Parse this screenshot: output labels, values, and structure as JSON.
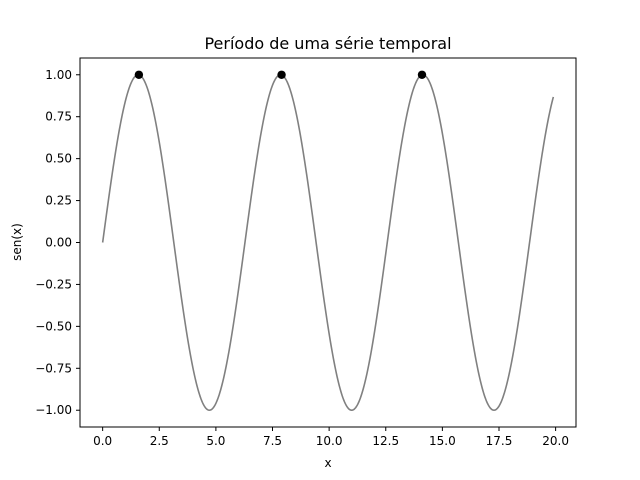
{
  "chart_data": {
    "type": "line",
    "title": "Período de uma série temporal",
    "xlabel": "x",
    "ylabel": "sen(x)",
    "xlim": [
      -1.0,
      20.9
    ],
    "ylim": [
      -1.1,
      1.1
    ],
    "x_ticks": [
      0.0,
      2.5,
      5.0,
      7.5,
      10.0,
      12.5,
      15.0,
      17.5,
      20.0
    ],
    "x_tick_labels": [
      "0.0",
      "2.5",
      "5.0",
      "7.5",
      "10.0",
      "12.5",
      "15.0",
      "17.5",
      "20.0"
    ],
    "y_ticks": [
      -1.0,
      -0.75,
      -0.5,
      -0.25,
      0.0,
      0.25,
      0.5,
      0.75,
      1.0
    ],
    "y_tick_labels": [
      "−1.00",
      "−0.75",
      "−0.50",
      "−0.25",
      "0.00",
      "0.25",
      "0.50",
      "0.75",
      "1.00"
    ],
    "grid": false,
    "series": [
      {
        "kind": "line",
        "function": "sin",
        "x_start": 0.0,
        "x_end": 19.9,
        "color": "#808080"
      },
      {
        "kind": "scatter",
        "color": "#000000",
        "points": [
          {
            "x": 1.6,
            "y": 1.0
          },
          {
            "x": 7.9,
            "y": 1.0
          },
          {
            "x": 14.1,
            "y": 1.0
          }
        ]
      }
    ]
  }
}
